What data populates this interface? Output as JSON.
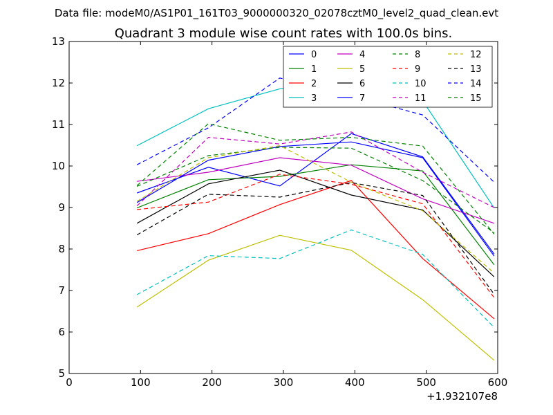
{
  "chart_data": {
    "type": "line",
    "suptitle": "Data file: modeM0/AS1P01_161T03_9000000320_02078cztM0_level2_quad_clean.evt",
    "title": "Quadrant 3 module wise count rates with 100.0s bins.",
    "xlabel": "",
    "ylabel": "",
    "x_offset_label": "+1.932107e8",
    "xlim": [
      0,
      600
    ],
    "ylim": [
      5,
      13
    ],
    "x_ticks": [
      "0",
      "100",
      "200",
      "300",
      "400",
      "500",
      "600"
    ],
    "y_ticks": [
      "5",
      "6",
      "7",
      "8",
      "9",
      "10",
      "11",
      "12",
      "13"
    ],
    "grid": false,
    "legend_position": "top-right",
    "legend_columns": 4,
    "x": [
      95,
      195,
      295,
      395,
      495,
      595
    ],
    "series": [
      {
        "name": "0",
        "color": "#0000ff",
        "style": "solid",
        "values": [
          9.35,
          9.97,
          9.52,
          10.78,
          10.22,
          7.88
        ]
      },
      {
        "name": "1",
        "color": "#008000",
        "style": "solid",
        "values": [
          8.99,
          9.67,
          9.75,
          10.03,
          9.88,
          7.62
        ]
      },
      {
        "name": "2",
        "color": "#ff0000",
        "style": "solid",
        "values": [
          7.96,
          8.37,
          9.07,
          9.65,
          7.77,
          6.32
        ]
      },
      {
        "name": "3",
        "color": "#00bfbf",
        "style": "solid",
        "values": [
          10.49,
          11.38,
          11.86,
          12.19,
          11.57,
          8.99
        ]
      },
      {
        "name": "4",
        "color": "#bf00bf",
        "style": "solid",
        "values": [
          9.63,
          9.85,
          10.2,
          10.02,
          9.21,
          8.62
        ]
      },
      {
        "name": "5",
        "color": "#bfbf00",
        "style": "solid",
        "values": [
          6.6,
          7.73,
          8.33,
          7.97,
          6.78,
          5.32
        ]
      },
      {
        "name": "6",
        "color": "#000000",
        "style": "solid",
        "values": [
          8.62,
          9.57,
          9.9,
          9.3,
          8.94,
          7.33
        ]
      },
      {
        "name": "7",
        "color": "#0000ff",
        "style": "solid",
        "values": [
          9.12,
          10.14,
          10.47,
          10.58,
          10.2,
          7.83
        ]
      },
      {
        "name": "8",
        "color": "#008000",
        "style": "dashed",
        "values": [
          9.51,
          10.25,
          10.45,
          10.43,
          9.65,
          8.39
        ]
      },
      {
        "name": "9",
        "color": "#ff0000",
        "style": "dashed",
        "values": [
          8.95,
          9.13,
          9.8,
          9.56,
          9.09,
          6.83
        ]
      },
      {
        "name": "10",
        "color": "#00bfbf",
        "style": "dashed",
        "values": [
          6.9,
          7.84,
          7.77,
          8.46,
          7.87,
          6.11
        ]
      },
      {
        "name": "11",
        "color": "#bf00bf",
        "style": "dashed",
        "values": [
          9.04,
          10.69,
          10.53,
          10.82,
          9.85,
          9.0
        ]
      },
      {
        "name": "12",
        "color": "#bfbf00",
        "style": "dashed",
        "values": [
          9.15,
          10.2,
          10.49,
          9.61,
          8.92,
          7.42
        ]
      },
      {
        "name": "13",
        "color": "#000000",
        "style": "dashed",
        "values": [
          8.34,
          9.32,
          9.25,
          9.6,
          9.29,
          6.91
        ]
      },
      {
        "name": "14",
        "color": "#0000ff",
        "style": "dashed",
        "values": [
          10.03,
          10.92,
          12.12,
          11.69,
          11.23,
          9.61
        ]
      },
      {
        "name": "15",
        "color": "#008000",
        "style": "dashed",
        "values": [
          9.53,
          11.02,
          10.62,
          10.69,
          10.48,
          8.36
        ]
      }
    ]
  }
}
